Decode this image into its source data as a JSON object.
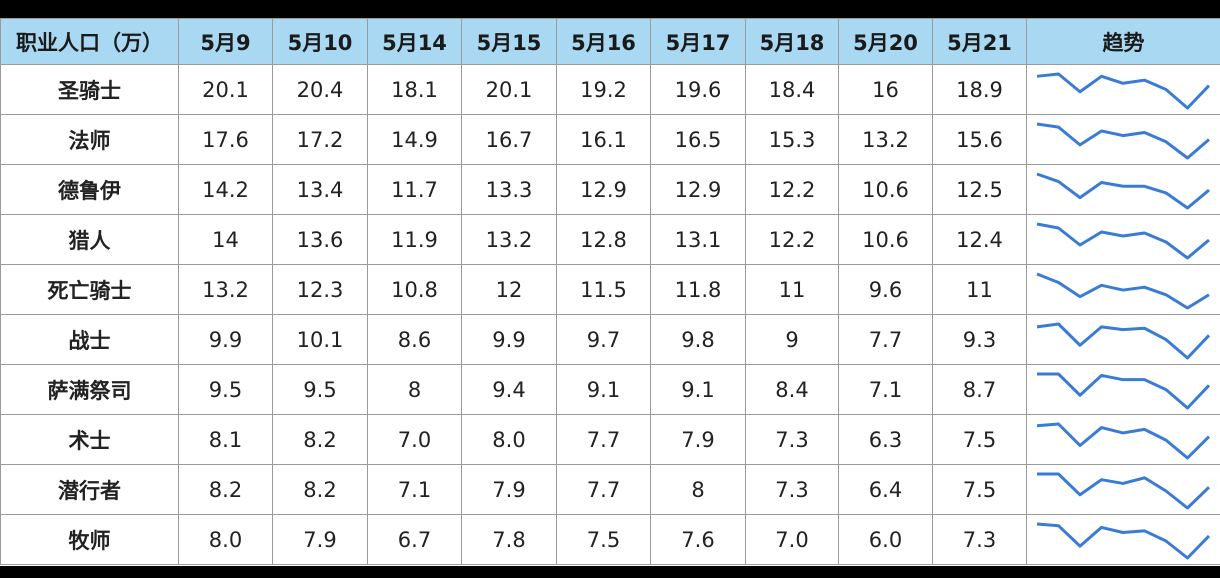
{
  "table": {
    "header": [
      "职业人口（万）",
      "5月9",
      "5月10",
      "5月14",
      "5月15",
      "5月16",
      "5月17",
      "5月18",
      "5月20",
      "5月21",
      "趋势"
    ],
    "rows": [
      [
        "圣骑士",
        "20.1",
        "20.4",
        "18.1",
        "20.1",
        "19.2",
        "19.6",
        "18.4",
        "16",
        "18.9"
      ],
      [
        "法师",
        "17.6",
        "17.2",
        "14.9",
        "16.7",
        "16.1",
        "16.5",
        "15.3",
        "13.2",
        "15.6"
      ],
      [
        "德鲁伊",
        "14.2",
        "13.4",
        "11.7",
        "13.3",
        "12.9",
        "12.9",
        "12.2",
        "10.6",
        "12.5"
      ],
      [
        "猎人",
        "14",
        "13.6",
        "11.9",
        "13.2",
        "12.8",
        "13.1",
        "12.2",
        "10.6",
        "12.4"
      ],
      [
        "死亡骑士",
        "13.2",
        "12.3",
        "10.8",
        "12",
        "11.5",
        "11.8",
        "11",
        "9.6",
        "11"
      ],
      [
        "战士",
        "9.9",
        "10.1",
        "8.6",
        "9.9",
        "9.7",
        "9.8",
        "9",
        "7.7",
        "9.3"
      ],
      [
        "萨满祭司",
        "9.5",
        "9.5",
        "8",
        "9.4",
        "9.1",
        "9.1",
        "8.4",
        "7.1",
        "8.7"
      ],
      [
        "术士",
        "8.1",
        "8.2",
        "7.0",
        "8.0",
        "7.7",
        "7.9",
        "7.3",
        "6.3",
        "7.5"
      ],
      [
        "潜行者",
        "8.2",
        "8.2",
        "7.1",
        "7.9",
        "7.7",
        "8",
        "7.3",
        "6.4",
        "7.5"
      ],
      [
        "牧师",
        "8.0",
        "7.9",
        "6.7",
        "7.8",
        "7.5",
        "7.6",
        "7.0",
        "6.0",
        "7.3"
      ]
    ]
  }
}
